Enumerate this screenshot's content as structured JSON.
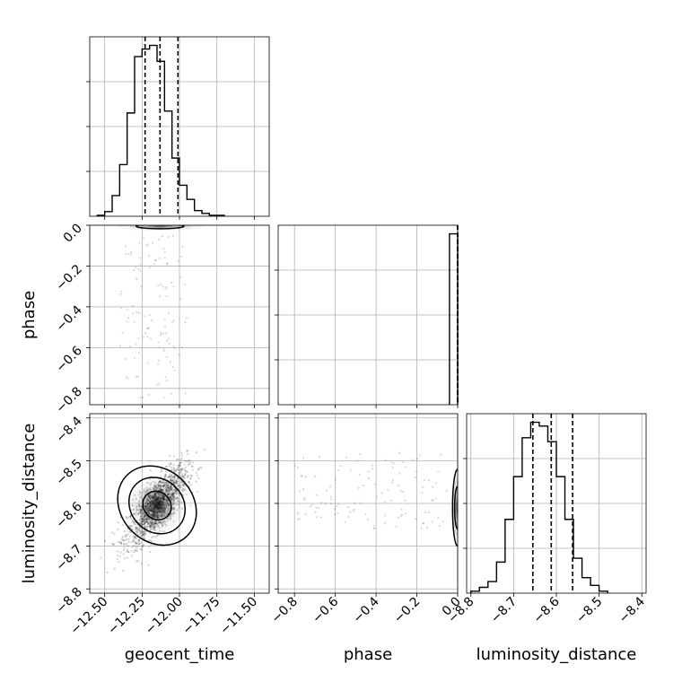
{
  "chart_data": {
    "type": "corner",
    "parameters": [
      {
        "name": "geocent_time",
        "label": "geocent_time",
        "range": [
          -12.6,
          -11.4
        ],
        "ticks": [
          "-12.50",
          "-12.25",
          "-12.00",
          "-11.75",
          "-11.50"
        ],
        "tick_values": [
          -12.5,
          -12.25,
          -12.0,
          -11.75,
          -11.5
        ],
        "quantiles": [
          -12.23,
          -12.13,
          -12.01
        ],
        "hist_bin_width": 0.05,
        "hist_bins_start": -12.55,
        "hist_counts": [
          1,
          5,
          22,
          55,
          110,
          170,
          178,
          182,
          165,
          112,
          62,
          33,
          18,
          6,
          3,
          1,
          1
        ]
      },
      {
        "name": "phase",
        "label": "phase",
        "range": [
          -0.88,
          0.0
        ],
        "ticks": [
          "-0.8",
          "-0.6",
          "-0.4",
          "-0.2",
          "0.0"
        ],
        "tick_values": [
          -0.8,
          -0.6,
          -0.4,
          -0.2,
          0.0
        ],
        "quantiles": [
          -0.001,
          0.0
        ],
        "hist_edges": [
          -0.04,
          0.0
        ],
        "hist_counts": [
          1
        ]
      },
      {
        "name": "luminosity_distance",
        "label": "luminosity_distance",
        "range": [
          -8.81,
          -8.39
        ],
        "ticks": [
          "-8.8",
          "-8.7",
          "-8.6",
          "-8.5",
          "-8.4"
        ],
        "tick_values": [
          -8.8,
          -8.7,
          -8.6,
          -8.5,
          -8.4
        ],
        "quantiles": [
          -8.655,
          -8.612,
          -8.562
        ],
        "hist_bin_width": 0.02,
        "hist_bins_start": -8.8,
        "hist_counts": [
          1,
          3,
          6,
          16,
          38,
          60,
          80,
          88,
          86,
          78,
          60,
          38,
          18,
          8,
          4,
          1
        ]
      }
    ],
    "pairs": [
      {
        "x": "geocent_time",
        "y": "phase",
        "center": [
          -12.13,
          -0.005
        ],
        "spread": [
          0.1,
          0.005
        ],
        "contours": [
          {
            "cx": -12.13,
            "cy": -0.005,
            "rx": 0.16,
            "ry": 0.012
          }
        ],
        "outlier_region": {
          "x_range": [
            -12.4,
            -11.95
          ],
          "y_range": [
            -0.85,
            -0.05
          ]
        }
      },
      {
        "x": "geocent_time",
        "y": "luminosity_distance",
        "center": [
          -12.15,
          -8.605
        ],
        "correlation": 0.75,
        "contours": [
          {
            "cx": -12.15,
            "cy": -8.605,
            "rx": 0.09,
            "ry": 0.035
          },
          {
            "cx": -12.15,
            "cy": -8.605,
            "rx": 0.175,
            "ry": 0.07
          },
          {
            "cx": -12.15,
            "cy": -8.605,
            "rx": 0.24,
            "ry": 0.1
          }
        ]
      },
      {
        "x": "phase",
        "y": "luminosity_distance",
        "center": [
          -0.003,
          -8.61
        ],
        "contours": [
          {
            "cx": 0.0,
            "cy": -8.61,
            "rx": 0.015,
            "ry": 0.05
          },
          {
            "cx": 0.0,
            "cy": -8.61,
            "rx": 0.025,
            "ry": 0.09
          }
        ],
        "outlier_region": {
          "x_range": [
            -0.8,
            -0.05
          ],
          "y_range": [
            -8.66,
            -8.48
          ]
        }
      }
    ],
    "grid": true,
    "quantile_style": "dashed"
  }
}
